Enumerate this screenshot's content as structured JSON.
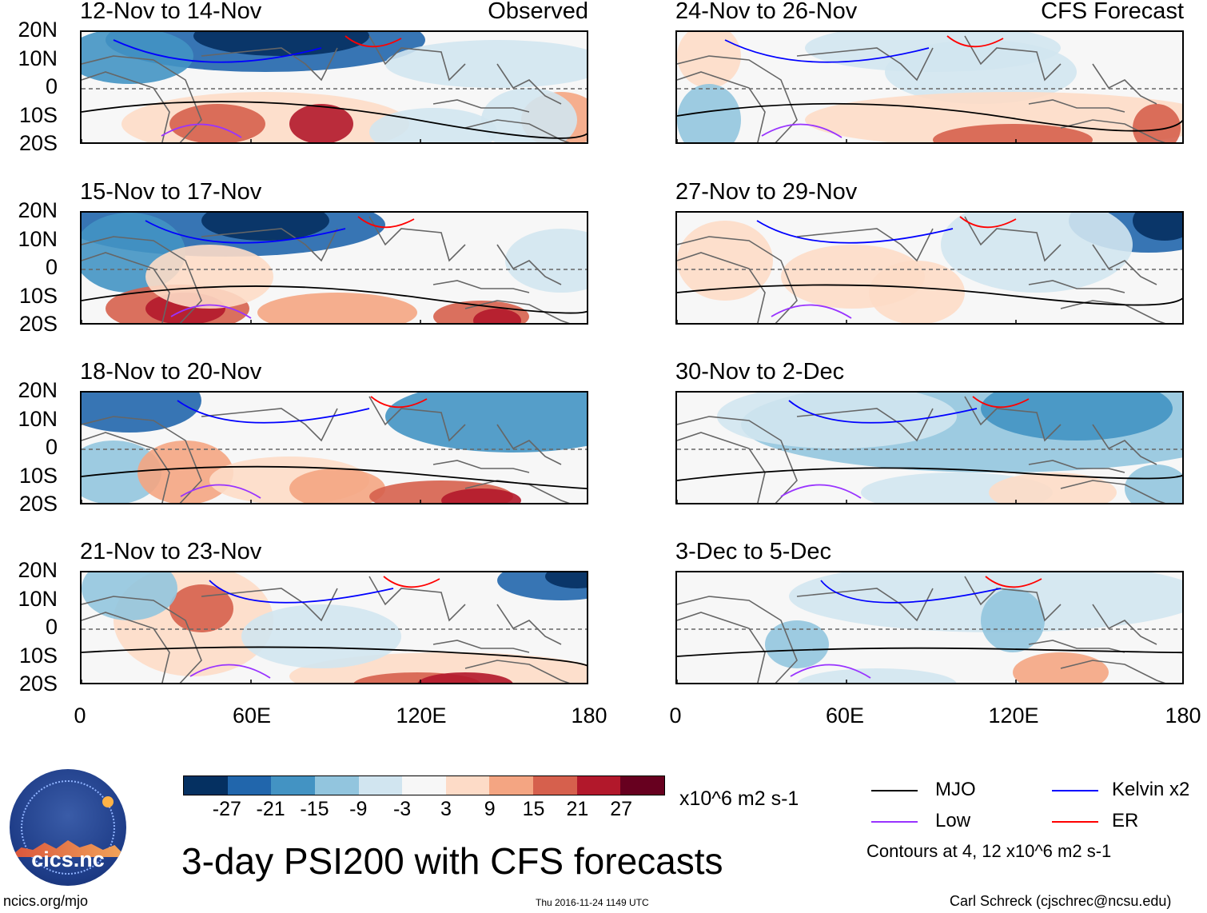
{
  "colors": {
    "scale": [
      "#053061",
      "#2166ac",
      "#4393c3",
      "#92c5de",
      "#d1e5f0",
      "#f7f7f7",
      "#fddbc7",
      "#f4a582",
      "#d6604d",
      "#b2182b",
      "#67001f"
    ],
    "mjo": "#000000",
    "kelvin": "#0000ff",
    "low": "#9933ff",
    "er": "#ff0000",
    "coast": "#666666"
  },
  "observed_label": "Observed",
  "forecast_label": "CFS Forecast",
  "y_labels": [
    "20N",
    "10N",
    "0",
    "10S",
    "20S"
  ],
  "x_labels": [
    "0",
    "60E",
    "120E",
    "180"
  ],
  "panels": [
    {
      "title": "12-Nov to 14-Nov",
      "tag": "Observed"
    },
    {
      "title": "24-Nov to 26-Nov",
      "tag": "CFS Forecast"
    },
    {
      "title": "15-Nov to 17-Nov",
      "tag": ""
    },
    {
      "title": "27-Nov to 29-Nov",
      "tag": ""
    },
    {
      "title": "18-Nov to 20-Nov",
      "tag": ""
    },
    {
      "title": "30-Nov to 2-Dec",
      "tag": ""
    },
    {
      "title": "21-Nov to 23-Nov",
      "tag": ""
    },
    {
      "title": "3-Dec to 5-Dec",
      "tag": ""
    }
  ],
  "colorbar": {
    "ticks": [
      "-27",
      "-21",
      "-15",
      "-9",
      "-3",
      "3",
      "9",
      "15",
      "21",
      "27"
    ],
    "units": "x10^6 m2 s-1"
  },
  "title": "3-day PSI200 with CFS forecasts",
  "legend": {
    "mjo": "MJO",
    "kelvin": "Kelvin x2",
    "low": "Low",
    "er": "ER",
    "note": "Contours at 4, 12 x10^6 m2 s-1"
  },
  "logo_text": "cics.nc",
  "footer": {
    "left": "ncics.org/mjo",
    "center": "Thu 2016-11-24 1149 UTC",
    "right": "Carl Schreck (cjschrec@ncsu.edu)"
  }
}
